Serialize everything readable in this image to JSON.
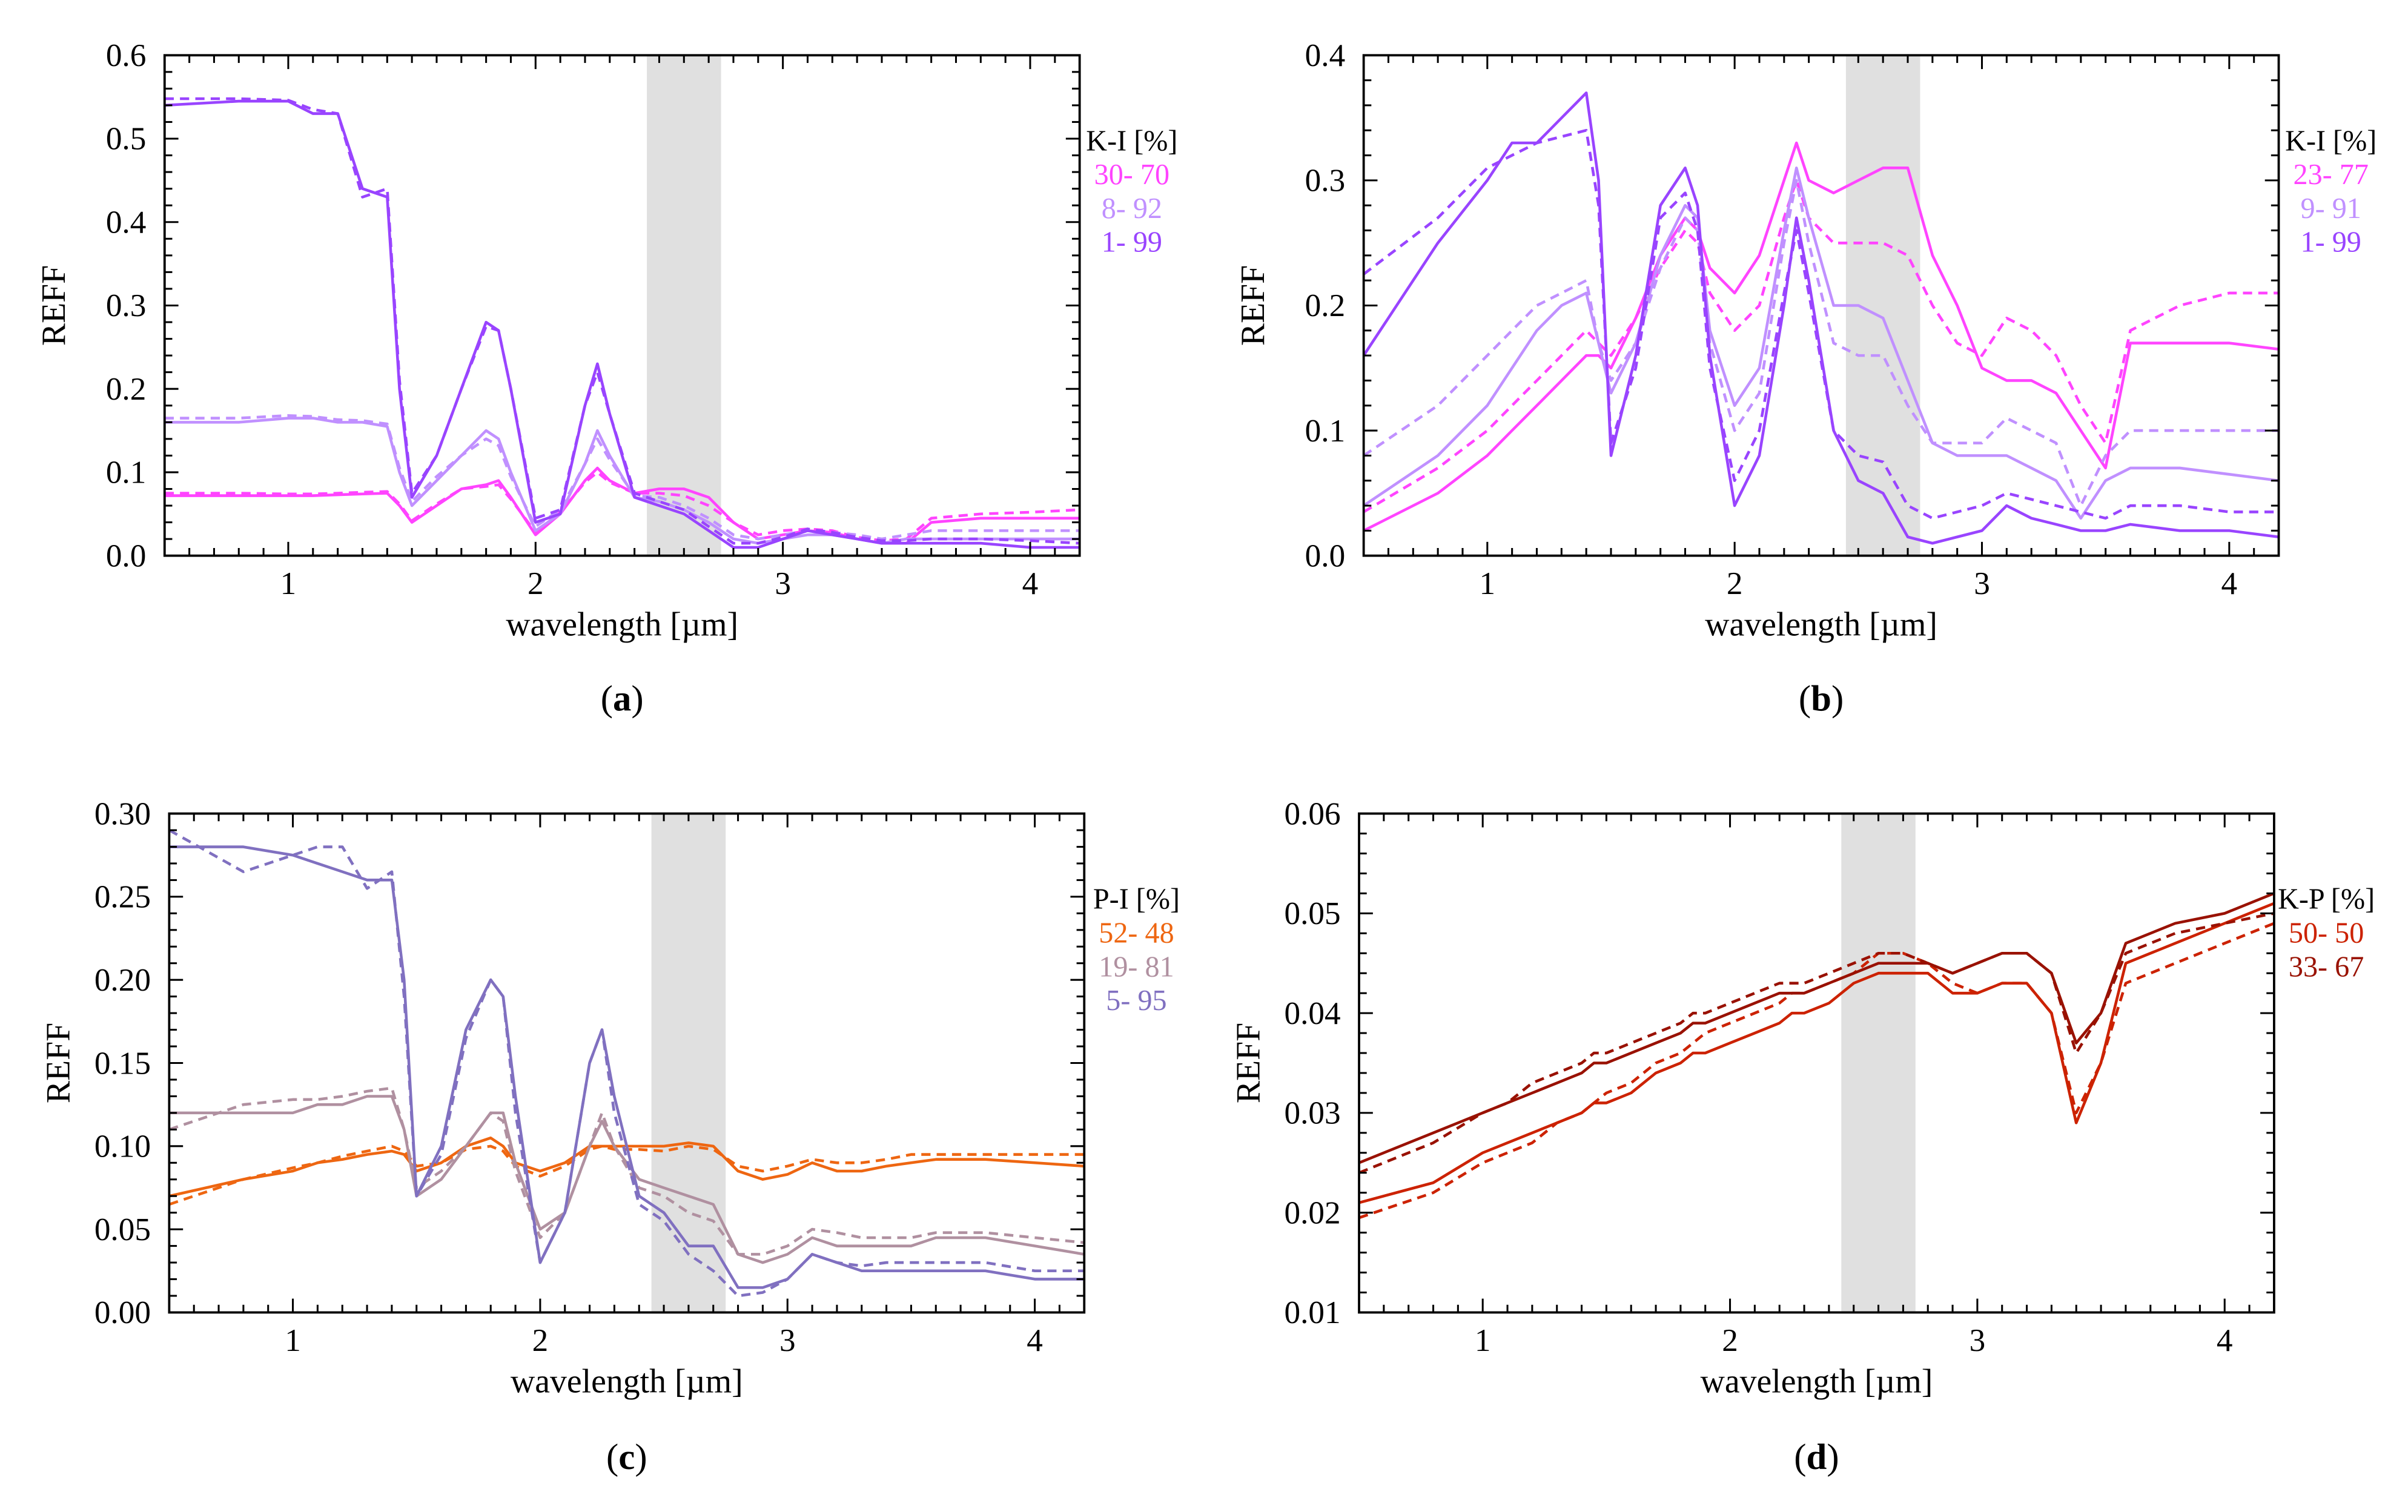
{
  "x": [
    0.5,
    0.8,
    1.0,
    1.1,
    1.2,
    1.3,
    1.4,
    1.45,
    1.5,
    1.6,
    1.7,
    1.8,
    1.85,
    1.9,
    2.0,
    2.1,
    2.2,
    2.25,
    2.3,
    2.4,
    2.5,
    2.6,
    2.7,
    2.8,
    2.9,
    3.0,
    3.1,
    3.2,
    3.3,
    3.4,
    3.5,
    3.6,
    3.8,
    4.0,
    4.2
  ],
  "chart_data": [
    {
      "id": "a",
      "caption_letter": "a",
      "type": "line",
      "xlabel": "wavelength [µm]",
      "ylabel": "REFF",
      "xlim": [
        0.5,
        4.2
      ],
      "ylim": [
        0,
        0.6
      ],
      "yticks": [
        "0.0",
        "0.1",
        "0.2",
        "0.3",
        "0.4",
        "0.5",
        "0.6"
      ],
      "yminor": 0.02,
      "xticks": [
        "1",
        "2",
        "3",
        "4"
      ],
      "shaded_band": [
        2.45,
        2.75
      ],
      "legend_title": "K-I [%]",
      "legend_position": "right",
      "series": [
        {
          "name": "30- 70",
          "color": "#ff44ff",
          "solid": [
            0.072,
            0.072,
            0.072,
            0.072,
            0.073,
            0.074,
            0.075,
            0.06,
            0.04,
            0.06,
            0.08,
            0.085,
            0.09,
            0.07,
            0.025,
            0.05,
            0.09,
            0.105,
            0.09,
            0.075,
            0.08,
            0.08,
            0.07,
            0.04,
            0.02,
            0.025,
            0.03,
            0.028,
            0.02,
            0.015,
            0.015,
            0.04,
            0.045,
            0.045,
            0.045
          ],
          "dashed": [
            0.075,
            0.075,
            0.074,
            0.074,
            0.075,
            0.076,
            0.077,
            0.062,
            0.042,
            0.062,
            0.08,
            0.083,
            0.085,
            0.068,
            0.028,
            0.052,
            0.088,
            0.1,
            0.088,
            0.075,
            0.075,
            0.072,
            0.06,
            0.04,
            0.025,
            0.03,
            0.032,
            0.03,
            0.022,
            0.018,
            0.02,
            0.045,
            0.05,
            0.052,
            0.055
          ]
        },
        {
          "name": "8- 92",
          "color": "#c090ff",
          "solid": [
            0.16,
            0.16,
            0.165,
            0.165,
            0.16,
            0.16,
            0.155,
            0.1,
            0.06,
            0.09,
            0.12,
            0.15,
            0.14,
            0.1,
            0.03,
            0.05,
            0.11,
            0.15,
            0.12,
            0.07,
            0.065,
            0.055,
            0.04,
            0.02,
            0.015,
            0.02,
            0.025,
            0.025,
            0.02,
            0.015,
            0.02,
            0.02,
            0.02,
            0.02,
            0.02
          ],
          "dashed": [
            0.165,
            0.165,
            0.168,
            0.167,
            0.163,
            0.162,
            0.158,
            0.105,
            0.065,
            0.095,
            0.12,
            0.14,
            0.132,
            0.095,
            0.035,
            0.055,
            0.11,
            0.14,
            0.115,
            0.072,
            0.07,
            0.06,
            0.045,
            0.025,
            0.02,
            0.025,
            0.03,
            0.028,
            0.025,
            0.02,
            0.025,
            0.03,
            0.03,
            0.03,
            0.03
          ]
        },
        {
          "name": "1- 99",
          "color": "#9944ff",
          "solid": [
            0.54,
            0.545,
            0.545,
            0.53,
            0.53,
            0.44,
            0.43,
            0.2,
            0.07,
            0.12,
            0.2,
            0.28,
            0.27,
            0.2,
            0.04,
            0.05,
            0.18,
            0.23,
            0.17,
            0.07,
            0.06,
            0.05,
            0.03,
            0.01,
            0.01,
            0.02,
            0.03,
            0.025,
            0.02,
            0.015,
            0.015,
            0.015,
            0.015,
            0.01,
            0.01
          ],
          "dashed": [
            0.548,
            0.548,
            0.546,
            0.535,
            0.53,
            0.43,
            0.44,
            0.21,
            0.075,
            0.12,
            0.2,
            0.275,
            0.27,
            0.2,
            0.045,
            0.055,
            0.18,
            0.22,
            0.17,
            0.075,
            0.065,
            0.055,
            0.035,
            0.015,
            0.015,
            0.022,
            0.032,
            0.028,
            0.022,
            0.018,
            0.018,
            0.02,
            0.02,
            0.018,
            0.015
          ]
        }
      ]
    },
    {
      "id": "b",
      "caption_letter": "b",
      "type": "line",
      "xlabel": "wavelength [µm]",
      "ylabel": "REFF",
      "xlim": [
        0.5,
        4.2
      ],
      "ylim": [
        0,
        0.4
      ],
      "yticks": [
        "0.0",
        "0.1",
        "0.2",
        "0.3",
        "0.4"
      ],
      "yminor": 0.02,
      "xticks": [
        "1",
        "2",
        "3",
        "4"
      ],
      "shaded_band": [
        2.45,
        2.75
      ],
      "legend_title": "K-I [%]",
      "legend_position": "right",
      "series": [
        {
          "name": "23- 77",
          "color": "#ff44ff",
          "solid": [
            0.02,
            0.05,
            0.08,
            0.1,
            0.12,
            0.14,
            0.16,
            0.16,
            0.15,
            0.19,
            0.24,
            0.27,
            0.26,
            0.23,
            0.21,
            0.24,
            0.3,
            0.33,
            0.3,
            0.29,
            0.3,
            0.31,
            0.31,
            0.24,
            0.2,
            0.15,
            0.14,
            0.14,
            0.13,
            0.1,
            0.07,
            0.17,
            0.17,
            0.17,
            0.165
          ],
          "dashed": [
            0.035,
            0.07,
            0.1,
            0.12,
            0.14,
            0.16,
            0.18,
            0.17,
            0.16,
            0.19,
            0.23,
            0.26,
            0.25,
            0.21,
            0.18,
            0.2,
            0.27,
            0.3,
            0.27,
            0.25,
            0.25,
            0.25,
            0.24,
            0.2,
            0.17,
            0.16,
            0.19,
            0.18,
            0.16,
            0.12,
            0.09,
            0.18,
            0.2,
            0.21,
            0.21
          ]
        },
        {
          "name": "9- 91",
          "color": "#c090ff",
          "solid": [
            0.04,
            0.08,
            0.12,
            0.15,
            0.18,
            0.2,
            0.21,
            0.17,
            0.13,
            0.17,
            0.24,
            0.28,
            0.27,
            0.18,
            0.12,
            0.15,
            0.26,
            0.31,
            0.27,
            0.2,
            0.2,
            0.19,
            0.14,
            0.09,
            0.08,
            0.08,
            0.08,
            0.07,
            0.06,
            0.03,
            0.06,
            0.07,
            0.07,
            0.065,
            0.06
          ],
          "dashed": [
            0.08,
            0.12,
            0.16,
            0.18,
            0.2,
            0.21,
            0.22,
            0.17,
            0.14,
            0.17,
            0.23,
            0.27,
            0.26,
            0.17,
            0.1,
            0.13,
            0.25,
            0.3,
            0.25,
            0.17,
            0.16,
            0.16,
            0.12,
            0.09,
            0.09,
            0.09,
            0.11,
            0.1,
            0.09,
            0.04,
            0.08,
            0.1,
            0.1,
            0.1,
            0.1
          ]
        },
        {
          "name": "1- 99",
          "color": "#9944ff",
          "solid": [
            0.16,
            0.25,
            0.3,
            0.33,
            0.33,
            0.35,
            0.37,
            0.3,
            0.08,
            0.16,
            0.28,
            0.31,
            0.28,
            0.16,
            0.04,
            0.08,
            0.2,
            0.27,
            0.22,
            0.1,
            0.06,
            0.05,
            0.015,
            0.01,
            0.015,
            0.02,
            0.04,
            0.03,
            0.025,
            0.02,
            0.02,
            0.025,
            0.02,
            0.02,
            0.015
          ],
          "dashed": [
            0.225,
            0.27,
            0.31,
            0.32,
            0.33,
            0.335,
            0.34,
            0.28,
            0.09,
            0.15,
            0.27,
            0.29,
            0.26,
            0.15,
            0.06,
            0.1,
            0.21,
            0.26,
            0.21,
            0.1,
            0.08,
            0.075,
            0.04,
            0.03,
            0.035,
            0.04,
            0.05,
            0.045,
            0.04,
            0.035,
            0.03,
            0.04,
            0.04,
            0.035,
            0.035
          ]
        }
      ]
    },
    {
      "id": "c",
      "caption_letter": "c",
      "type": "line",
      "xlabel": "wavelength [µm]",
      "ylabel": "REFF",
      "xlim": [
        0.5,
        4.2
      ],
      "ylim": [
        0,
        0.3
      ],
      "yticks": [
        "0.00",
        "0.05",
        "0.10",
        "0.15",
        "0.20",
        "0.25",
        "0.30"
      ],
      "yminor": 0.01,
      "xticks": [
        "1",
        "2",
        "3",
        "4"
      ],
      "shaded_band": [
        2.45,
        2.75
      ],
      "legend_title": "P-I [%]",
      "legend_position": "right",
      "series": [
        {
          "name": "52- 48",
          "color": "#ee6611",
          "solid": [
            0.07,
            0.08,
            0.085,
            0.09,
            0.092,
            0.095,
            0.097,
            0.095,
            0.085,
            0.09,
            0.1,
            0.105,
            0.1,
            0.09,
            0.085,
            0.09,
            0.1,
            0.1,
            0.1,
            0.1,
            0.1,
            0.102,
            0.1,
            0.085,
            0.08,
            0.083,
            0.09,
            0.085,
            0.085,
            0.088,
            0.09,
            0.092,
            0.092,
            0.09,
            0.088
          ],
          "dashed": [
            0.065,
            0.08,
            0.087,
            0.09,
            0.094,
            0.097,
            0.1,
            0.097,
            0.088,
            0.09,
            0.098,
            0.1,
            0.097,
            0.088,
            0.082,
            0.088,
            0.098,
            0.1,
            0.098,
            0.098,
            0.097,
            0.1,
            0.098,
            0.088,
            0.085,
            0.088,
            0.092,
            0.09,
            0.09,
            0.092,
            0.095,
            0.095,
            0.095,
            0.095,
            0.095
          ]
        },
        {
          "name": "19- 81",
          "color": "#b090a0",
          "solid": [
            0.12,
            0.12,
            0.12,
            0.125,
            0.125,
            0.13,
            0.13,
            0.11,
            0.07,
            0.08,
            0.1,
            0.12,
            0.12,
            0.09,
            0.05,
            0.06,
            0.1,
            0.115,
            0.1,
            0.08,
            0.075,
            0.07,
            0.065,
            0.035,
            0.03,
            0.035,
            0.045,
            0.04,
            0.04,
            0.04,
            0.04,
            0.045,
            0.045,
            0.04,
            0.035
          ],
          "dashed": [
            0.11,
            0.125,
            0.128,
            0.128,
            0.13,
            0.133,
            0.135,
            0.11,
            0.075,
            0.085,
            0.1,
            0.12,
            0.115,
            0.085,
            0.045,
            0.06,
            0.1,
            0.12,
            0.1,
            0.075,
            0.07,
            0.06,
            0.055,
            0.035,
            0.035,
            0.04,
            0.05,
            0.048,
            0.045,
            0.045,
            0.045,
            0.048,
            0.048,
            0.045,
            0.042
          ]
        },
        {
          "name": "5- 95",
          "color": "#8070c0",
          "solid": [
            0.28,
            0.28,
            0.275,
            0.27,
            0.265,
            0.26,
            0.26,
            0.2,
            0.07,
            0.1,
            0.17,
            0.2,
            0.19,
            0.13,
            0.03,
            0.06,
            0.15,
            0.17,
            0.13,
            0.07,
            0.06,
            0.04,
            0.04,
            0.015,
            0.015,
            0.02,
            0.035,
            0.03,
            0.025,
            0.025,
            0.025,
            0.025,
            0.025,
            0.02,
            0.02
          ],
          "dashed": [
            0.29,
            0.265,
            0.275,
            0.28,
            0.28,
            0.255,
            0.265,
            0.19,
            0.07,
            0.095,
            0.165,
            0.2,
            0.19,
            0.12,
            0.03,
            0.06,
            0.15,
            0.17,
            0.12,
            0.065,
            0.055,
            0.035,
            0.025,
            0.01,
            0.012,
            0.02,
            0.035,
            0.03,
            0.028,
            0.03,
            0.03,
            0.03,
            0.03,
            0.025,
            0.025
          ]
        }
      ]
    },
    {
      "id": "d",
      "caption_letter": "d",
      "type": "line",
      "xlabel": "wavelength [µm]",
      "ylabel": "REFF",
      "xlim": [
        0.5,
        4.2
      ],
      "ylim": [
        0.01,
        0.06
      ],
      "yticks": [
        "0.01",
        "0.02",
        "0.03",
        "0.04",
        "0.05",
        "0.06"
      ],
      "yminor": 0.002,
      "xticks": [
        "1",
        "2",
        "3",
        "4"
      ],
      "shaded_band": [
        2.45,
        2.75
      ],
      "legend_title": "K-P [%]",
      "legend_position": "right",
      "series": [
        {
          "name": "50- 50",
          "color": "#cc2200",
          "solid": [
            0.021,
            0.023,
            0.026,
            0.027,
            0.028,
            0.029,
            0.03,
            0.031,
            0.031,
            0.032,
            0.034,
            0.035,
            0.036,
            0.036,
            0.037,
            0.038,
            0.039,
            0.04,
            0.04,
            0.041,
            0.043,
            0.044,
            0.044,
            0.044,
            0.042,
            0.042,
            0.043,
            0.043,
            0.04,
            0.029,
            0.035,
            0.045,
            0.047,
            0.049,
            0.051
          ],
          "dashed": [
            0.0195,
            0.022,
            0.025,
            0.026,
            0.027,
            0.029,
            0.03,
            0.031,
            0.032,
            0.033,
            0.035,
            0.036,
            0.037,
            0.038,
            0.039,
            0.04,
            0.041,
            0.042,
            0.042,
            0.043,
            0.044,
            0.046,
            0.046,
            0.045,
            0.043,
            0.042,
            0.043,
            0.043,
            0.04,
            0.03,
            0.035,
            0.043,
            0.045,
            0.047,
            0.049
          ]
        },
        {
          "name": "33- 67",
          "color": "#991100",
          "solid": [
            0.025,
            0.028,
            0.03,
            0.031,
            0.032,
            0.033,
            0.034,
            0.035,
            0.035,
            0.036,
            0.037,
            0.038,
            0.039,
            0.039,
            0.04,
            0.041,
            0.042,
            0.042,
            0.042,
            0.043,
            0.044,
            0.045,
            0.045,
            0.045,
            0.044,
            0.045,
            0.046,
            0.046,
            0.044,
            0.037,
            0.04,
            0.047,
            0.049,
            0.05,
            0.052
          ],
          "dashed": [
            0.024,
            0.027,
            0.03,
            0.031,
            0.033,
            0.034,
            0.035,
            0.036,
            0.036,
            0.037,
            0.038,
            0.039,
            0.04,
            0.04,
            0.041,
            0.042,
            0.043,
            0.043,
            0.043,
            0.044,
            0.045,
            0.046,
            0.046,
            0.045,
            0.044,
            0.045,
            0.046,
            0.046,
            0.044,
            0.036,
            0.04,
            0.046,
            0.048,
            0.049,
            0.05
          ]
        }
      ]
    }
  ]
}
